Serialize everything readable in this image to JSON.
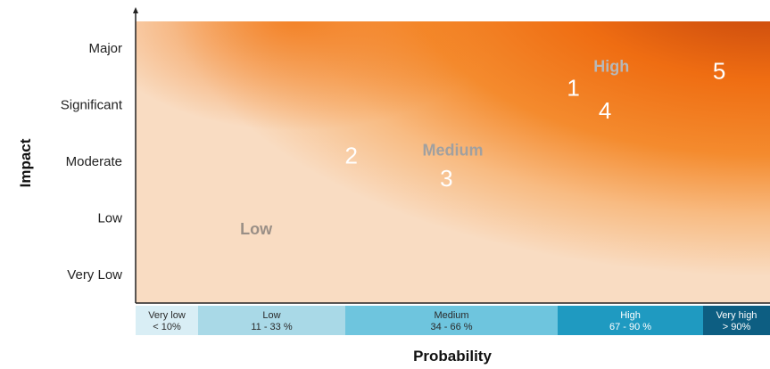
{
  "chart_data": {
    "type": "heatmap",
    "xlabel": "Probability",
    "ylabel": "Impact",
    "y_categories": [
      "Very Low",
      "Low",
      "Moderate",
      "Significant",
      "Major"
    ],
    "x_categories": [
      {
        "name": "Very low",
        "range": "< 10%",
        "color": "#d9eef5"
      },
      {
        "name": "Low",
        "range": "11 - 33 %",
        "color": "#a9d9e7"
      },
      {
        "name": "Medium",
        "range": "34 - 66 %",
        "color": "#6ec5de"
      },
      {
        "name": "High",
        "range": "67 - 90 %",
        "color": "#1f9ac1"
      },
      {
        "name": "Very high",
        "range": "> 90%",
        "color": "#0d5e82"
      }
    ],
    "zones": [
      {
        "label": "Low",
        "x": 0.19,
        "y": 1.8,
        "color": "#9a8f86"
      },
      {
        "label": "Medium",
        "x": 0.5,
        "y": 3.2,
        "color": "#a0a0a0"
      },
      {
        "label": "High",
        "x": 0.75,
        "y": 4.68,
        "color": "#b8b8b8"
      }
    ],
    "risks": [
      {
        "label": "1",
        "x": 0.69,
        "y": 4.3
      },
      {
        "label": "2",
        "x": 0.34,
        "y": 3.1
      },
      {
        "label": "3",
        "x": 0.49,
        "y": 2.7
      },
      {
        "label": "4",
        "x": 0.74,
        "y": 3.9
      },
      {
        "label": "5",
        "x": 0.92,
        "y": 4.6
      }
    ]
  }
}
